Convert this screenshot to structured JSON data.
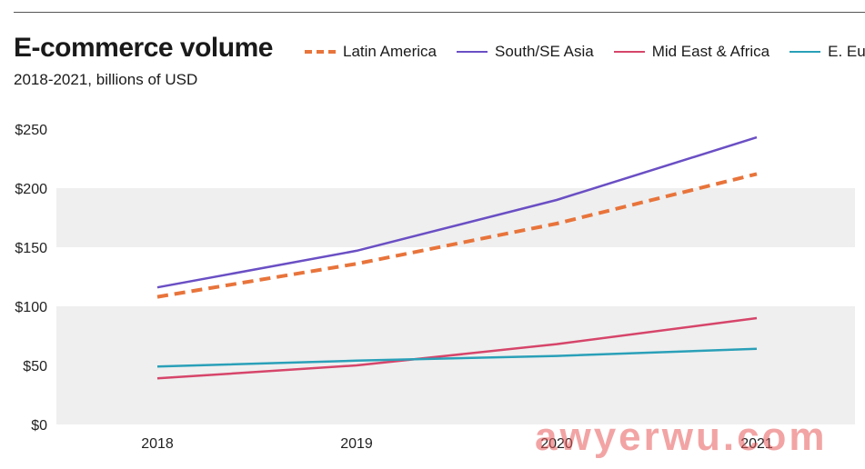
{
  "colors": {
    "latin_america": "#e8743b",
    "south_se_asia": "#6a4fc4",
    "mid_east_africa": "#d6456a",
    "e_europe": "#2aa0b8",
    "band": "#efefef",
    "axis_text": "#222222"
  },
  "chart_data": {
    "type": "line",
    "title": "E-commerce volume",
    "subtitle": "2018-2021, billions of USD",
    "xlabel": "",
    "ylabel": "",
    "categories": [
      "2018",
      "2019",
      "2020",
      "2021"
    ],
    "ylim": [
      0,
      250
    ],
    "yticks": [
      0,
      50,
      100,
      150,
      200,
      250
    ],
    "ytick_labels": [
      "$0",
      "$50",
      "$100",
      "$150",
      "$200",
      "$250"
    ],
    "legend_position": "top",
    "series": [
      {
        "key": "latin_america",
        "name": "Latin America",
        "style": "dashed",
        "values": [
          108,
          136,
          170,
          212
        ]
      },
      {
        "key": "south_se_asia",
        "name": "South/SE Asia",
        "style": "solid",
        "values": [
          116,
          147,
          190,
          243
        ]
      },
      {
        "key": "mid_east_africa",
        "name": "Mid East & Africa",
        "style": "solid",
        "values": [
          39,
          50,
          68,
          90
        ]
      },
      {
        "key": "e_europe",
        "name": "E. Europe",
        "style": "solid",
        "values": [
          49,
          54,
          58,
          64
        ]
      }
    ]
  },
  "watermark": "awyerwu.com"
}
